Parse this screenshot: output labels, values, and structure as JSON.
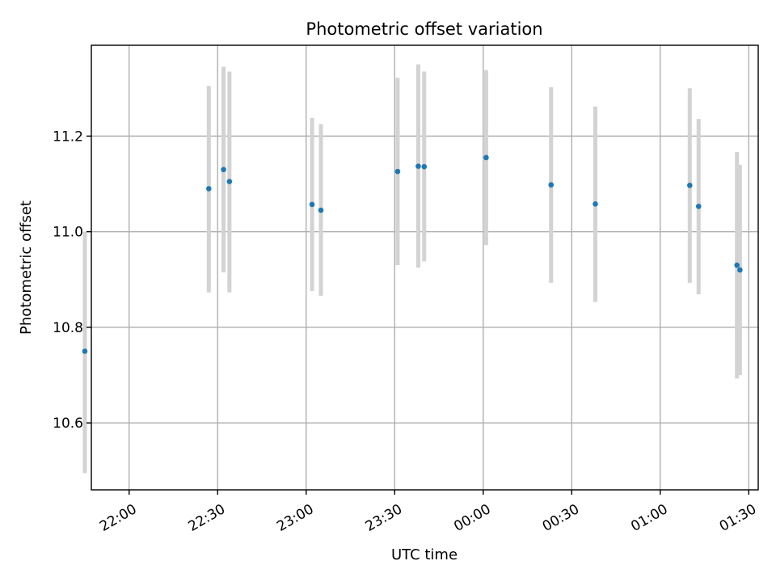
{
  "chart_data": {
    "type": "scatter",
    "title": "Photometric offset variation",
    "xlabel": "UTC time",
    "ylabel": "Photometric offset",
    "x_unit": "UTC clock time (HH:MM), crossing midnight",
    "xlim": [
      "21:47",
      "23:59+01:33"
    ],
    "x_ticks": [
      "22:00",
      "22:30",
      "23:00",
      "23:30",
      "00:00",
      "00:30",
      "01:00",
      "01:30"
    ],
    "ylim": [
      10.46,
      11.39
    ],
    "y_ticks": [
      10.6,
      10.8,
      11.0,
      11.2
    ],
    "y_tick_labels": [
      "10.6",
      "10.8",
      "11.0",
      "11.2"
    ],
    "grid": true,
    "colors": {
      "point": "#1f77b4",
      "errorbar": "#d3d3d3"
    },
    "points": [
      {
        "time": "21:45",
        "y": 10.75,
        "ylow": 10.495,
        "yhigh": 11.0
      },
      {
        "time": "22:27",
        "y": 11.09,
        "ylow": 10.873,
        "yhigh": 11.305
      },
      {
        "time": "22:32",
        "y": 11.13,
        "ylow": 10.915,
        "yhigh": 11.345
      },
      {
        "time": "22:34",
        "y": 11.105,
        "ylow": 10.873,
        "yhigh": 11.335
      },
      {
        "time": "23:02",
        "y": 11.057,
        "ylow": 10.876,
        "yhigh": 11.238
      },
      {
        "time": "23:05",
        "y": 11.045,
        "ylow": 10.866,
        "yhigh": 11.225
      },
      {
        "time": "23:31",
        "y": 11.126,
        "ylow": 10.93,
        "yhigh": 11.322
      },
      {
        "time": "23:38",
        "y": 11.137,
        "ylow": 10.925,
        "yhigh": 11.35
      },
      {
        "time": "23:40",
        "y": 11.136,
        "ylow": 10.938,
        "yhigh": 11.335
      },
      {
        "time": "00:01",
        "y": 11.155,
        "ylow": 10.972,
        "yhigh": 11.338
      },
      {
        "time": "00:23",
        "y": 11.098,
        "ylow": 10.893,
        "yhigh": 11.302
      },
      {
        "time": "00:38",
        "y": 11.058,
        "ylow": 10.853,
        "yhigh": 11.262
      },
      {
        "time": "01:10",
        "y": 11.097,
        "ylow": 10.893,
        "yhigh": 11.3
      },
      {
        "time": "01:13",
        "y": 11.053,
        "ylow": 10.869,
        "yhigh": 11.236
      },
      {
        "time": "01:26",
        "y": 10.93,
        "ylow": 10.693,
        "yhigh": 11.167
      },
      {
        "time": "01:27",
        "y": 10.92,
        "ylow": 10.7,
        "yhigh": 11.14
      }
    ]
  }
}
